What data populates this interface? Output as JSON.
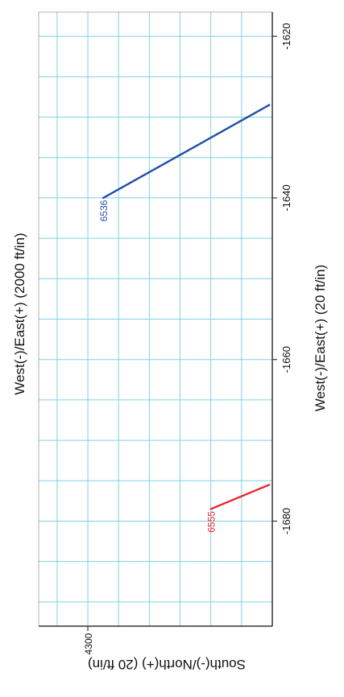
{
  "chart_data": {
    "type": "line",
    "orientation": "rotated-90-clockwise",
    "title_top": "West(-)/East(+) (2000 ft/in)",
    "xlabel": "West(-)/East(+) (20 ft/in)",
    "ylabel": "South(-)/North(+) (20 ft/in)",
    "x_ticks": [
      "-1620",
      "-1640",
      "-1660",
      "-1680"
    ],
    "y_ticks": [
      "4300"
    ],
    "xlim": [
      -1617,
      -1693
    ],
    "ylim": [
      4292,
      4330
    ],
    "grid": true,
    "grid_color": "#7fd1e6",
    "axis_color": "#333333",
    "series": [
      {
        "name": "6536",
        "color": "#1f4fa8",
        "points": [
          [
            -1628.5,
            4329.5
          ],
          [
            -1640,
            4302.5
          ]
        ]
      },
      {
        "name": "6555",
        "color": "#e8252b",
        "points": [
          [
            -1675.5,
            4329.5
          ],
          [
            -1678.5,
            4320
          ]
        ]
      }
    ]
  }
}
